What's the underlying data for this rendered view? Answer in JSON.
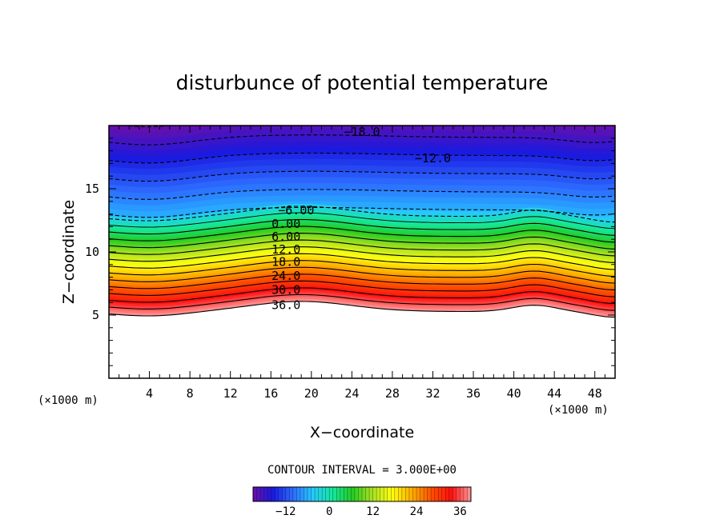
{
  "chart_data": {
    "type": "contour",
    "title": "disturbunce of potential temperature",
    "xlabel": "X−coordinate",
    "ylabel": "Z−coordinate",
    "x_unit_left": "(×1000 m)",
    "x_unit_right": "(×1000 m)",
    "xlim": [
      0,
      50
    ],
    "ylim": [
      0,
      20
    ],
    "x_ticks": [
      "4",
      "8",
      "12",
      "16",
      "20",
      "24",
      "28",
      "32",
      "36",
      "40",
      "44",
      "48"
    ],
    "x_tick_values": [
      4,
      8,
      12,
      16,
      20,
      24,
      28,
      32,
      36,
      40,
      44,
      48
    ],
    "y_ticks": [
      "5",
      "10",
      "15"
    ],
    "y_tick_values": [
      5,
      10,
      15
    ],
    "contour_interval_label": "CONTOUR INTERVAL = 3.000E+00",
    "contour_interval": 3.0,
    "value_range": [
      -21,
      39
    ],
    "contour_labels": [
      {
        "text": "−18.0",
        "x": 25,
        "z": 19.5
      },
      {
        "text": "−12.0",
        "x": 32,
        "z": 17.4
      },
      {
        "text": "−6.00",
        "x": 18.5,
        "z": 13.3
      },
      {
        "text": "0.00",
        "x": 17.5,
        "z": 12.2
      },
      {
        "text": "6.00",
        "x": 17.5,
        "z": 11.2
      },
      {
        "text": "12.0",
        "x": 17.5,
        "z": 10.2
      },
      {
        "text": "18.0",
        "x": 17.5,
        "z": 9.2
      },
      {
        "text": "24.0",
        "x": 17.5,
        "z": 8.1
      },
      {
        "text": "30.0",
        "x": 17.5,
        "z": 7.0
      },
      {
        "text": "36.0",
        "x": 17.5,
        "z": 5.8
      }
    ],
    "colorbar": {
      "range": [
        -21,
        39
      ],
      "tick_labels": [
        "−12",
        "0",
        "12",
        "24",
        "36"
      ],
      "tick_values": [
        -12,
        0,
        12,
        24,
        36
      ]
    },
    "colormap": [
      "#6a0fa8",
      "#1a1ae0",
      "#2d6cff",
      "#25c8ff",
      "#15e8a0",
      "#22cc22",
      "#a8e020",
      "#ffff10",
      "#ffb000",
      "#ff5000",
      "#ff1010",
      "#ff9a9a"
    ]
  }
}
